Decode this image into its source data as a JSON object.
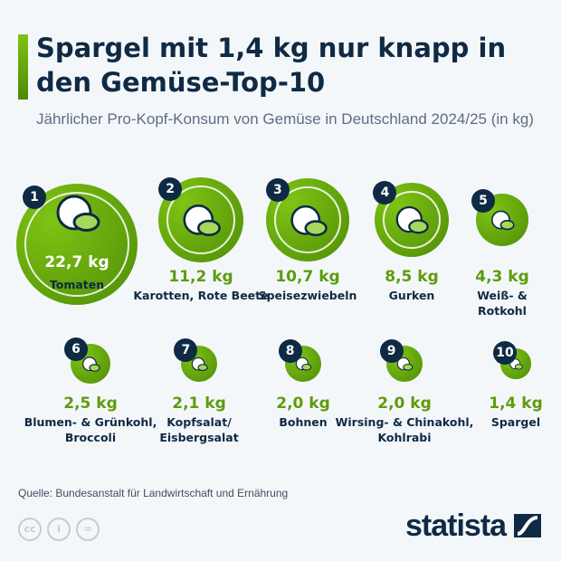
{
  "title": "Spargel mit 1,4 kg nur knapp in den Gemüse-Top-10",
  "subtitle": "Jährlicher Pro-Kopf-Konsum von Gemüse in Deutschland 2024/25 (in kg)",
  "source": "Quelle: Bundesanstalt für Landwirtschaft und Ernährung",
  "brand": "statista",
  "license_icons": [
    "cc-icon",
    "by-icon",
    "nd-icon"
  ],
  "colors": {
    "accent": "#6aaa0e",
    "navy": "#0f2a44",
    "background": "#f4f7fa"
  },
  "chart_data": {
    "type": "bubble",
    "unit": "kg",
    "items": [
      {
        "rank": "1",
        "value": 22.7,
        "value_label": "22,7 kg",
        "label": "Tomaten",
        "icon": "tomato-icon"
      },
      {
        "rank": "2",
        "value": 11.2,
        "value_label": "11,2 kg",
        "label": "Karotten, Rote Beete",
        "icon": "carrot-beet-icon"
      },
      {
        "rank": "3",
        "value": 10.7,
        "value_label": "10,7 kg",
        "label": "Speisezwiebeln",
        "icon": "onion-icon"
      },
      {
        "rank": "4",
        "value": 8.5,
        "value_label": "8,5 kg",
        "label": "Gurken",
        "icon": "cucumber-icon"
      },
      {
        "rank": "5",
        "value": 4.3,
        "value_label": "4,3 kg",
        "label": "Weiß- & Rotkohl",
        "icon": "cabbage-icon"
      },
      {
        "rank": "6",
        "value": 2.5,
        "value_label": "2,5 kg",
        "label": "Blumen- & Grünkohl, Broccoli",
        "icon": "broccoli-icon"
      },
      {
        "rank": "7",
        "value": 2.1,
        "value_label": "2,1 kg",
        "label": "Kopfsalat/ Eisbergsalat",
        "icon": "lettuce-icon"
      },
      {
        "rank": "8",
        "value": 2.0,
        "value_label": "2,0 kg",
        "label": "Bohnen",
        "icon": "beans-icon"
      },
      {
        "rank": "9",
        "value": 2.0,
        "value_label": "2,0 kg",
        "label": "Wirsing- & Chinakohl, Kohlrabi",
        "icon": "savoy-cabbage-icon"
      },
      {
        "rank": "10",
        "value": 1.4,
        "value_label": "1,4 kg",
        "label": "Spargel",
        "icon": "asparagus-icon"
      }
    ]
  }
}
